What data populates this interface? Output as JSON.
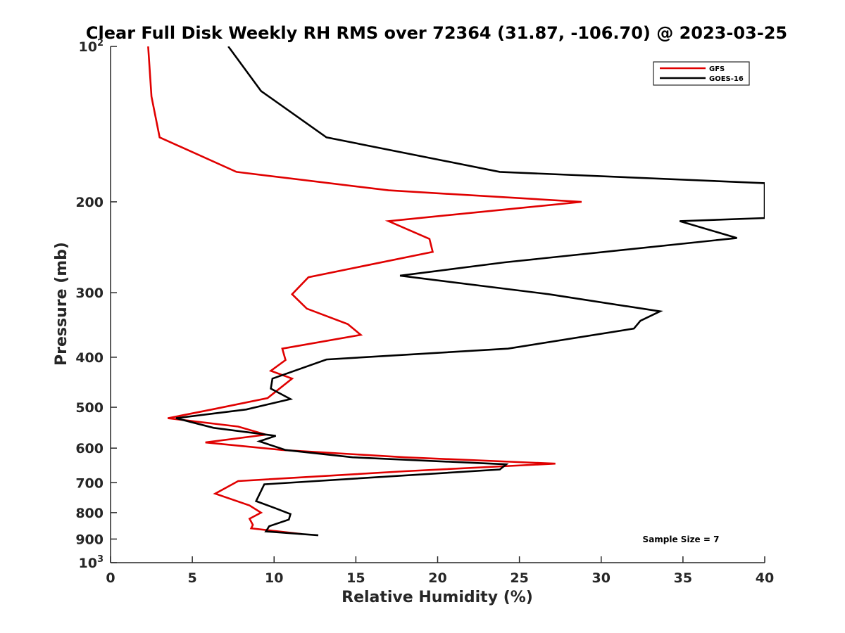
{
  "chart_data": {
    "type": "line",
    "title": "Clear Full Disk Weekly RH RMS over 72364 (31.87, -106.70) @ 2023-03-25",
    "xlabel": "Relative Humidity (%)",
    "ylabel": "Pressure (mb)",
    "xlim": [
      0,
      40
    ],
    "ylim": [
      100,
      1000
    ],
    "y_scale": "log",
    "y_reversed": true,
    "grid": false,
    "legend_position": "top-right",
    "x_ticks": [
      0,
      5,
      10,
      15,
      20,
      25,
      30,
      35,
      40
    ],
    "x_tick_labels": [
      "0",
      "5",
      "10",
      "15",
      "20",
      "25",
      "30",
      "35",
      "40"
    ],
    "y_ticks": [
      200,
      300,
      400,
      500,
      600,
      700,
      800,
      900
    ],
    "y_tick_labels": [
      "200",
      "300",
      "400",
      "500",
      "600",
      "700",
      "800",
      "900"
    ],
    "y_tick_power_labels": [
      {
        "pressure": 100,
        "base": "10",
        "exp": "2"
      },
      {
        "pressure": 1000,
        "base": "10",
        "exp": "3"
      }
    ],
    "annotation": "Sample Size = 7",
    "series": [
      {
        "name": "GFS",
        "color": "#e00000",
        "points": [
          [
            2.3,
            100
          ],
          [
            2.5,
            125
          ],
          [
            3.0,
            150
          ],
          [
            7.7,
            175
          ],
          [
            17.0,
            190
          ],
          [
            28.8,
            200
          ],
          [
            17.0,
            218
          ],
          [
            19.5,
            236
          ],
          [
            19.7,
            250
          ],
          [
            12.1,
            280
          ],
          [
            11.1,
            302
          ],
          [
            12.0,
            322
          ],
          [
            14.5,
            345
          ],
          [
            15.3,
            362
          ],
          [
            10.5,
            385
          ],
          [
            10.7,
            405
          ],
          [
            9.8,
            425
          ],
          [
            11.1,
            440
          ],
          [
            9.6,
            480
          ],
          [
            6.2,
            505
          ],
          [
            3.5,
            525
          ],
          [
            7.8,
            545
          ],
          [
            9.5,
            565
          ],
          [
            5.8,
            585
          ],
          [
            10.5,
            605
          ],
          [
            18.0,
            625
          ],
          [
            27.2,
            643
          ],
          [
            18.0,
            665
          ],
          [
            7.8,
            695
          ],
          [
            6.4,
            735
          ],
          [
            8.5,
            775
          ],
          [
            9.2,
            800
          ],
          [
            8.5,
            822
          ],
          [
            8.7,
            845
          ],
          [
            8.6,
            858
          ],
          [
            11.7,
            880
          ]
        ]
      },
      {
        "name": "GOES-16",
        "color": "#000000",
        "points": [
          [
            7.2,
            100
          ],
          [
            9.2,
            122
          ],
          [
            13.2,
            150
          ],
          [
            23.8,
            175
          ],
          [
            40.0,
            184
          ],
          [
            40.0,
            215
          ],
          [
            34.8,
            218
          ],
          [
            38.3,
            235
          ],
          [
            24.1,
            262
          ],
          [
            17.7,
            278
          ],
          [
            26.8,
            302
          ],
          [
            33.6,
            326
          ],
          [
            32.4,
            340
          ],
          [
            32.0,
            352
          ],
          [
            24.3,
            385
          ],
          [
            13.2,
            404
          ],
          [
            9.9,
            440
          ],
          [
            9.8,
            460
          ],
          [
            11.0,
            482
          ],
          [
            8.3,
            505
          ],
          [
            4.0,
            525
          ],
          [
            6.3,
            548
          ],
          [
            10.1,
            568
          ],
          [
            9.1,
            582
          ],
          [
            10.7,
            605
          ],
          [
            14.8,
            625
          ],
          [
            24.2,
            645
          ],
          [
            23.8,
            660
          ],
          [
            9.4,
            705
          ],
          [
            8.9,
            760
          ],
          [
            10.1,
            785
          ],
          [
            11.0,
            805
          ],
          [
            10.9,
            825
          ],
          [
            9.7,
            850
          ],
          [
            9.5,
            870
          ],
          [
            12.7,
            885
          ]
        ]
      }
    ]
  },
  "colors": {
    "axis": "#262626",
    "background": "#ffffff"
  }
}
